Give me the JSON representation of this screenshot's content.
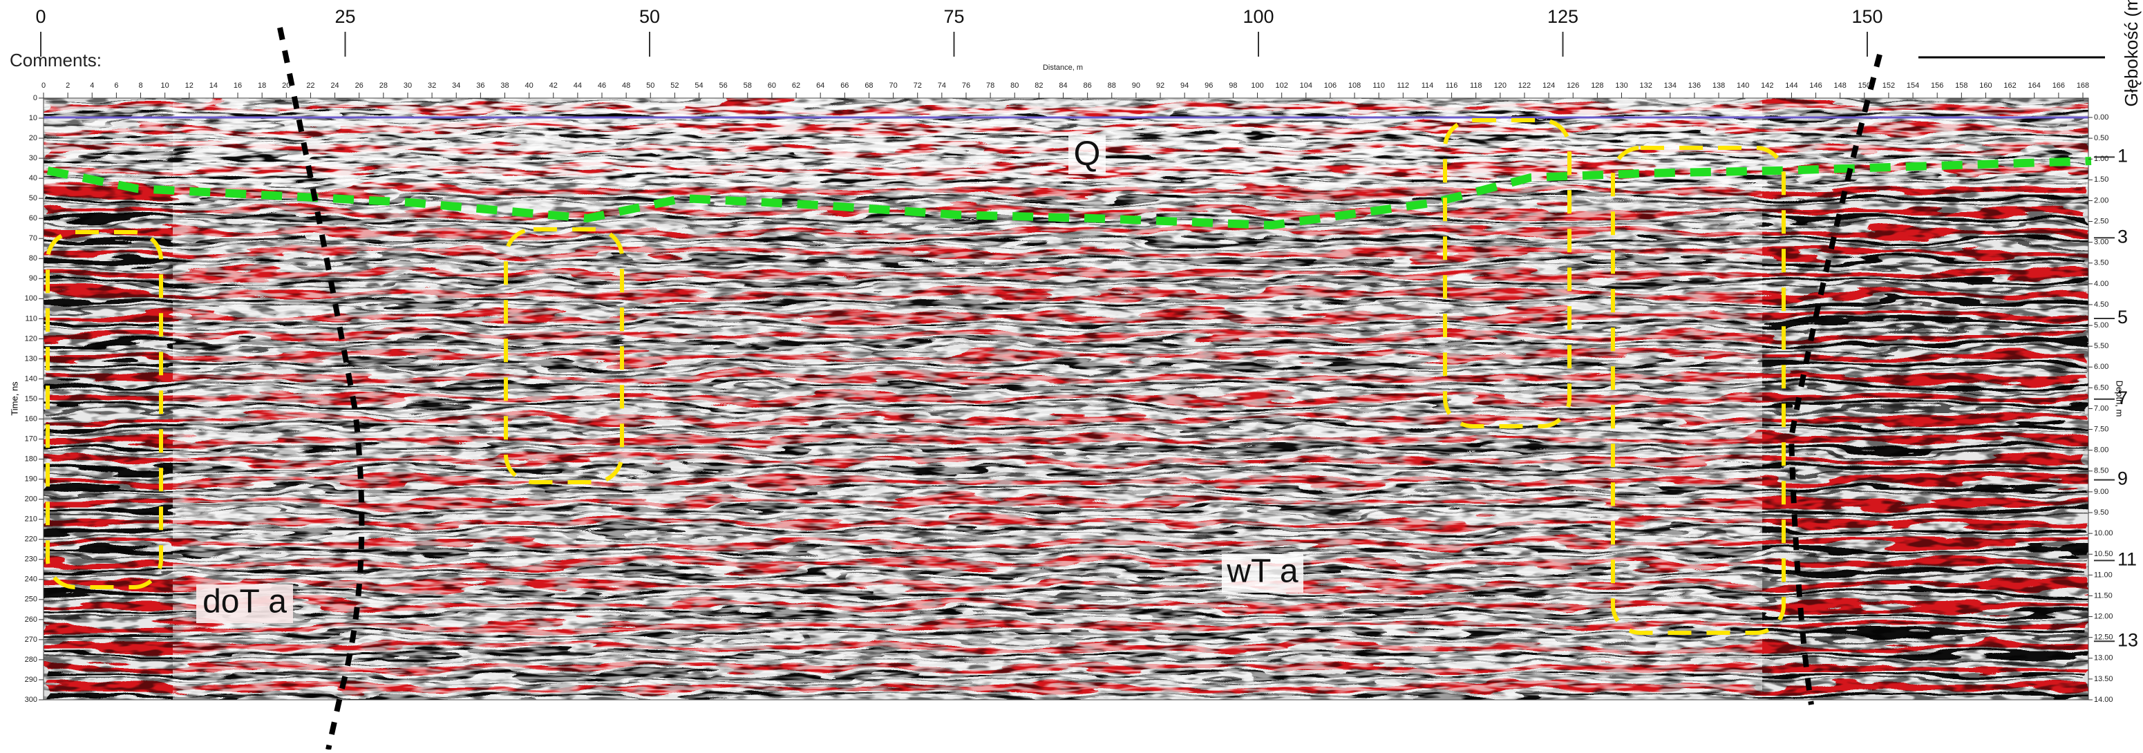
{
  "top_axis": {
    "ticks": [
      0,
      25,
      50,
      75,
      100,
      125,
      150
    ]
  },
  "comments_label": "Comments:",
  "right_axis": {
    "title": "Głębokość (m)",
    "ticks": [
      1,
      3,
      5,
      7,
      9,
      11,
      13
    ]
  },
  "radargram": {
    "x_title": "Distance, m",
    "x_ticks": [
      0,
      2,
      4,
      6,
      8,
      10,
      12,
      14,
      16,
      18,
      20,
      22,
      24,
      26,
      28,
      30,
      32,
      34,
      36,
      38,
      40,
      42,
      44,
      46,
      48,
      50,
      52,
      54,
      56,
      58,
      60,
      62,
      64,
      66,
      68,
      70,
      72,
      74,
      76,
      78,
      80,
      82,
      84,
      86,
      88,
      90,
      92,
      94,
      96,
      98,
      100,
      102,
      104,
      106,
      108,
      110,
      112,
      114,
      116,
      118,
      120,
      122,
      124,
      126,
      128,
      130,
      132,
      134,
      136,
      138,
      140,
      142,
      144,
      146,
      148,
      150,
      152,
      154,
      156,
      158,
      160,
      162,
      164,
      166,
      168
    ],
    "y_title": "Time, ns",
    "y_ticks": [
      0,
      10,
      20,
      30,
      40,
      50,
      60,
      70,
      80,
      90,
      100,
      110,
      120,
      130,
      140,
      150,
      160,
      170,
      180,
      190,
      200,
      210,
      220,
      230,
      240,
      250,
      260,
      270,
      280,
      290,
      300
    ],
    "y2_title": "Depth, m",
    "y2_ticks": [
      "0.00",
      "0.50",
      "1.00",
      "1.50",
      "2.00",
      "2.50",
      "3.00",
      "3.50",
      "4.00",
      "4.50",
      "5.00",
      "5.50",
      "6.00",
      "6.50",
      "7.00",
      "7.50",
      "8.00",
      "8.50",
      "9.00",
      "9.50",
      "10.00",
      "10.50",
      "11.00",
      "11.50",
      "12.00",
      "12.50",
      "13.00",
      "13.50",
      "14.00"
    ]
  },
  "units": [
    {
      "label": "Q"
    },
    {
      "label": "doT a"
    },
    {
      "label": "wT a"
    }
  ]
}
